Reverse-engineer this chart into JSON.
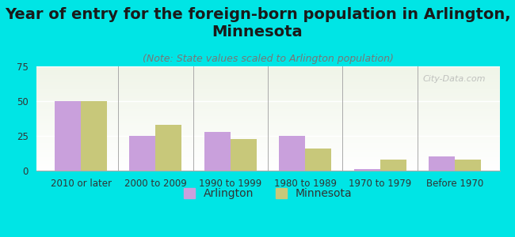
{
  "title": "Year of entry for the foreign-born population in Arlington,\nMinnesota",
  "subtitle": "(Note: State values scaled to Arlington population)",
  "categories": [
    "2010 or later",
    "2000 to 2009",
    "1990 to 1999",
    "1980 to 1989",
    "1970 to 1979",
    "Before 1970"
  ],
  "arlington_values": [
    50,
    25,
    28,
    25,
    1,
    10
  ],
  "minnesota_values": [
    50,
    33,
    23,
    16,
    8,
    8
  ],
  "arlington_color": "#c9a0dc",
  "minnesota_color": "#c8c87a",
  "background_color": "#00e5e5",
  "plot_bg_top": "#f0f5e8",
  "plot_bg_bottom": "#ffffff",
  "ylim": [
    0,
    75
  ],
  "yticks": [
    0,
    25,
    50,
    75
  ],
  "bar_width": 0.35,
  "legend_arlington": "Arlington",
  "legend_minnesota": "Minnesota",
  "watermark": "City-Data.com",
  "title_fontsize": 14,
  "subtitle_fontsize": 9,
  "tick_fontsize": 8.5,
  "legend_fontsize": 10
}
